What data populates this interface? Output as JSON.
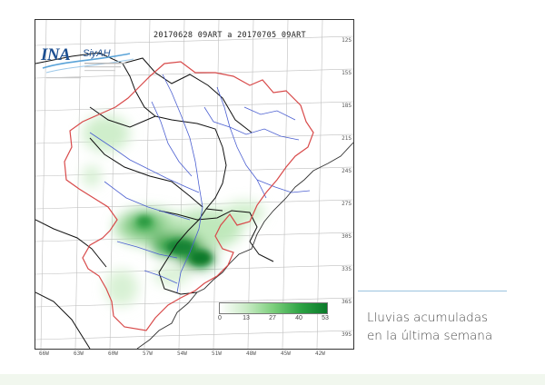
{
  "map": {
    "period_label": "20170628 09ART a 20170705 09ART",
    "logo": {
      "primary_text": "INA",
      "secondary_text": "SiyAH"
    },
    "lat_labels": [
      "12S",
      "15S",
      "18S",
      "21S",
      "24S",
      "27S",
      "30S",
      "33S",
      "36S",
      "39S"
    ],
    "lon_labels": [
      "66W",
      "63W",
      "60W",
      "57W",
      "54W",
      "51W",
      "48W",
      "45W",
      "42W"
    ],
    "legend": {
      "ticks": [
        "0",
        "13",
        "27",
        "40",
        "53"
      ]
    },
    "colors": {
      "basin_border": "#d84a4a",
      "country_border": "#111111",
      "rivers": "#4b5fd1",
      "rain_light": "#c9ebc5",
      "rain_heavy": "#0a7a2a",
      "grid": "#bfbfbf"
    }
  },
  "caption": {
    "line1": "Lluvias acumuladas",
    "line2": "en la última semana"
  }
}
